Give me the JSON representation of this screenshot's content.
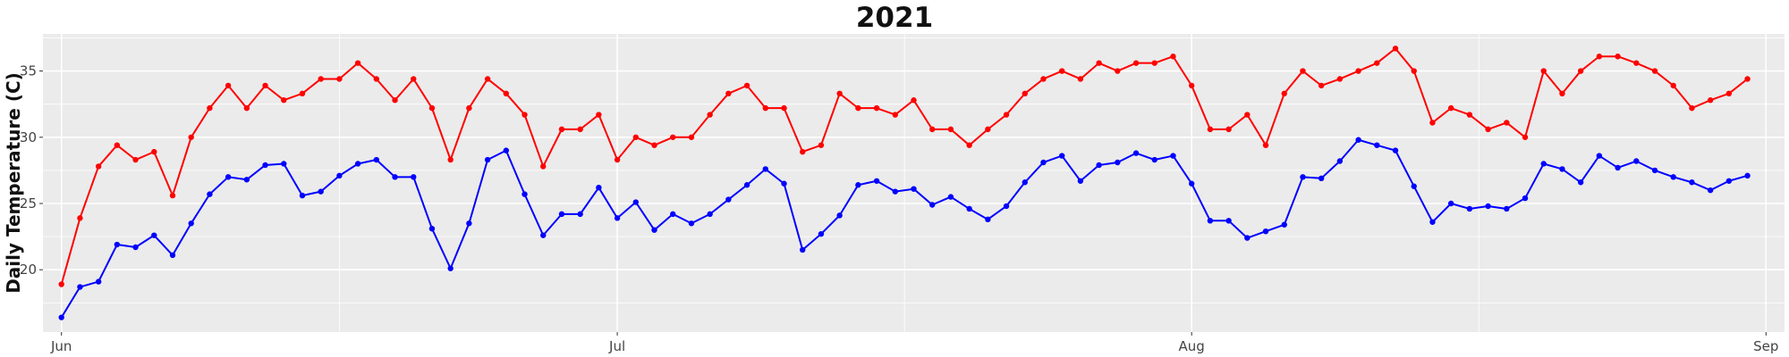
{
  "chart_data": {
    "type": "line",
    "title": "2021",
    "xlabel": "",
    "ylabel": "Daily Temperature (C)",
    "x_axis": {
      "type": "date",
      "range": [
        "2021-05-31",
        "2021-09-02"
      ],
      "ticks": [
        {
          "date": "2021-06-01",
          "label": "Jun"
        },
        {
          "date": "2021-07-01",
          "label": "Jul"
        },
        {
          "date": "2021-08-01",
          "label": "Aug"
        },
        {
          "date": "2021-09-01",
          "label": "Sep"
        }
      ]
    },
    "y_axis": {
      "range": [
        15.3,
        37.8
      ],
      "ticks": [
        20,
        25,
        30,
        35
      ],
      "tick_labels": [
        "20",
        "25",
        "30",
        "35"
      ]
    },
    "grid": true,
    "panel_background": "#EBEBEB",
    "x": [
      "2021-06-01",
      "2021-06-02",
      "2021-06-03",
      "2021-06-04",
      "2021-06-05",
      "2021-06-06",
      "2021-06-07",
      "2021-06-08",
      "2021-06-09",
      "2021-06-10",
      "2021-06-11",
      "2021-06-12",
      "2021-06-13",
      "2021-06-14",
      "2021-06-15",
      "2021-06-16",
      "2021-06-17",
      "2021-06-18",
      "2021-06-19",
      "2021-06-20",
      "2021-06-21",
      "2021-06-22",
      "2021-06-23",
      "2021-06-24",
      "2021-06-25",
      "2021-06-26",
      "2021-06-27",
      "2021-06-28",
      "2021-06-29",
      "2021-06-30",
      "2021-07-01",
      "2021-07-02",
      "2021-07-03",
      "2021-07-04",
      "2021-07-05",
      "2021-07-06",
      "2021-07-07",
      "2021-07-08",
      "2021-07-09",
      "2021-07-10",
      "2021-07-11",
      "2021-07-12",
      "2021-07-13",
      "2021-07-14",
      "2021-07-15",
      "2021-07-16",
      "2021-07-17",
      "2021-07-18",
      "2021-07-19",
      "2021-07-20",
      "2021-07-21",
      "2021-07-22",
      "2021-07-23",
      "2021-07-24",
      "2021-07-25",
      "2021-07-26",
      "2021-07-27",
      "2021-07-28",
      "2021-07-29",
      "2021-07-30",
      "2021-07-31",
      "2021-08-01",
      "2021-08-02",
      "2021-08-03",
      "2021-08-04",
      "2021-08-05",
      "2021-08-06",
      "2021-08-07",
      "2021-08-08",
      "2021-08-09",
      "2021-08-10",
      "2021-08-11",
      "2021-08-12",
      "2021-08-13",
      "2021-08-14",
      "2021-08-15",
      "2021-08-16",
      "2021-08-17",
      "2021-08-18",
      "2021-08-19",
      "2021-08-20",
      "2021-08-21",
      "2021-08-22",
      "2021-08-23",
      "2021-08-24",
      "2021-08-25",
      "2021-08-26",
      "2021-08-27",
      "2021-08-28",
      "2021-08-29",
      "2021-08-30",
      "2021-08-31"
    ],
    "series": [
      {
        "color": "#FF0000",
        "values": [
          18.9,
          23.9,
          27.8,
          29.4,
          28.3,
          28.9,
          25.6,
          30.0,
          32.2,
          33.9,
          32.2,
          33.9,
          32.8,
          33.3,
          34.4,
          34.4,
          35.6,
          34.4,
          32.8,
          34.4,
          32.2,
          28.3,
          32.2,
          34.4,
          33.3,
          31.7,
          27.8,
          30.6,
          30.6,
          31.7,
          28.3,
          30.0,
          29.4,
          30.0,
          30.0,
          31.7,
          33.3,
          33.9,
          32.2,
          32.2,
          28.9,
          29.4,
          33.3,
          32.2,
          32.2,
          31.7,
          32.8,
          30.6,
          30.6,
          29.4,
          30.6,
          31.7,
          33.3,
          34.4,
          35.0,
          34.4,
          35.6,
          35.0,
          35.6,
          35.6,
          36.1,
          33.9,
          30.6,
          30.6,
          31.7,
          29.4,
          33.3,
          35.0,
          33.9,
          34.4,
          35.0,
          35.6,
          36.7,
          35.0,
          31.1,
          32.2,
          31.7,
          30.6,
          31.1,
          30.0,
          35.0,
          33.3,
          35.0,
          36.1,
          36.1,
          35.6,
          35.0,
          33.9,
          32.2,
          32.8,
          33.3,
          34.4
        ]
      },
      {
        "color": "#0000FF",
        "values": [
          16.4,
          18.7,
          19.1,
          21.9,
          21.7,
          22.6,
          21.1,
          23.5,
          25.7,
          27.0,
          26.8,
          27.9,
          28.0,
          25.6,
          25.9,
          27.1,
          28.0,
          28.3,
          27.0,
          27.0,
          23.1,
          20.1,
          23.5,
          28.3,
          29.0,
          25.7,
          22.6,
          24.2,
          24.2,
          26.2,
          23.9,
          25.1,
          23.0,
          24.2,
          23.5,
          24.2,
          25.3,
          26.4,
          27.6,
          26.5,
          21.5,
          22.7,
          24.1,
          26.4,
          26.7,
          25.9,
          26.1,
          24.9,
          25.5,
          24.6,
          23.8,
          24.8,
          26.6,
          28.1,
          28.6,
          26.7,
          27.9,
          28.1,
          28.8,
          28.3,
          28.6,
          26.5,
          23.7,
          23.7,
          22.4,
          22.9,
          23.4,
          27.0,
          26.9,
          28.2,
          29.8,
          29.4,
          29.0,
          26.3,
          23.6,
          25.0,
          24.6,
          24.8,
          24.6,
          25.4,
          28.0,
          27.6,
          26.6,
          28.6,
          27.7,
          28.2,
          27.5,
          27.0,
          26.6,
          26.0,
          26.7,
          27.1
        ]
      }
    ]
  }
}
